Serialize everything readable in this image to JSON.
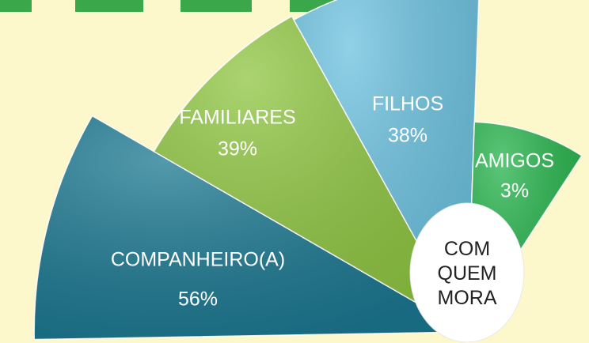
{
  "chart_data": {
    "type": "polar_area",
    "categories": [
      "COMPANHEIRO(A)",
      "FAMILIARES",
      "FILHOS",
      "AMIGOS"
    ],
    "values": [
      56,
      39,
      38,
      3
    ],
    "value_labels": [
      "56%",
      "39%",
      "38%",
      "3%"
    ],
    "colors": [
      "#1b7891",
      "#8fc641",
      "#6cc2e0",
      "#25b34b"
    ],
    "annotation": "COM QUEM MORA"
  }
}
